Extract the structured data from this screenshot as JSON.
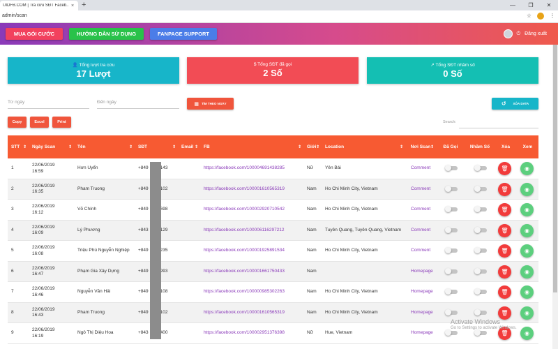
{
  "browser": {
    "tab_title": "UIDFB.COM | Tra cứu SĐT Faceb...",
    "tab_close": "×",
    "new_tab": "+",
    "url": "admin/scan",
    "window_controls": [
      "—",
      "❐",
      "✕"
    ]
  },
  "header": {
    "buttons": [
      "MUA GÓI CƯỚC",
      "HƯỚNG DẪN SỬ DỤNG",
      "FANPAGE SUPPORT"
    ],
    "logout": "Đăng xuất"
  },
  "stats": [
    {
      "title": "Tổng lượt tra cứu",
      "value": "17 Lượt",
      "icon": "user-icon"
    },
    {
      "title": "Tổng SĐT đã gọi",
      "value": "2 Số",
      "icon": "dollar-icon"
    },
    {
      "title": "Tổng SĐT nhầm số",
      "value": "0 Số",
      "icon": "trend-icon"
    }
  ],
  "filters": {
    "from_placeholder": "Từ ngày",
    "to_placeholder": "Đến ngày",
    "filter_button": "TÌM THEO NGÀY",
    "clear_button": "XÓA DATA",
    "export_buttons": [
      "Copy",
      "Excel",
      "Print"
    ],
    "search_label": "Search:"
  },
  "table": {
    "columns": [
      "STT",
      "Ngày Scan",
      "Tên",
      "SĐT",
      "Email",
      "FB",
      "Giới",
      "Location",
      "Nơi Scan",
      "Đã Gọi",
      "Nhầm Số",
      "Xóa",
      "Xem"
    ],
    "rows": [
      {
        "stt": "1",
        "date": "22/06/2019",
        "time": "16:59",
        "name": "Hơn Uyển",
        "sdt_pre": "+849",
        "sdt_post": "143",
        "fb": "https://facebook.com/100004691438285",
        "gender": "Nữ",
        "location": "Yên Bái",
        "source": "Comment"
      },
      {
        "stt": "2",
        "date": "22/06/2019",
        "time": "16:35",
        "name": "Pham Truong",
        "sdt_pre": "+849",
        "sdt_post": "102",
        "fb": "https://facebook.com/100001610565319",
        "gender": "Nam",
        "location": "Ho Chi Minh City, Vietnam",
        "source": "Comment"
      },
      {
        "stt": "3",
        "date": "22/06/2019",
        "time": "16:12",
        "name": "Võ Chính",
        "sdt_pre": "+849",
        "sdt_post": "698",
        "fb": "https://facebook.com/100002920710542",
        "gender": "Nam",
        "location": "Ho Chi Minh City, Vietnam",
        "source": "Comment"
      },
      {
        "stt": "4",
        "date": "22/06/2019",
        "time": "16:09",
        "name": "Lý Phương",
        "sdt_pre": "+843",
        "sdt_post": "129",
        "fb": "https://facebook.com/100006116297212",
        "gender": "Nam",
        "location": "Tuyên Quang, Tuyên Quang, Vietnam",
        "source": "Comment"
      },
      {
        "stt": "5",
        "date": "22/06/2019",
        "time": "16:08",
        "name": "Triệu Phú Nguyễn Nghiệp",
        "sdt_pre": "+849",
        "sdt_post": "235",
        "fb": "https://facebook.com/100001925891534",
        "gender": "Nam",
        "location": "Ho Chi Minh City, Vietnam",
        "source": "Comment"
      },
      {
        "stt": "6",
        "date": "22/06/2019",
        "time": "16:47",
        "name": "Phạm Gia Xây Dựng",
        "sdt_pre": "+849",
        "sdt_post": "993",
        "fb": "https://facebook.com/100001661750433",
        "gender": "Nam",
        "location": "",
        "source": "Homepage"
      },
      {
        "stt": "7",
        "date": "22/06/2019",
        "time": "16:46",
        "name": "Nguyễn Văn Hải",
        "sdt_pre": "+849",
        "sdt_post": "108",
        "fb": "https://facebook.com/100000985302263",
        "gender": "Nam",
        "location": "Ho Chi Minh City, Vietnam",
        "source": "Homepage"
      },
      {
        "stt": "8",
        "date": "22/06/2019",
        "time": "16:43",
        "name": "Pham Truong",
        "sdt_pre": "+849",
        "sdt_post": "102",
        "fb": "https://facebook.com/100001610565319",
        "gender": "Nam",
        "location": "Ho Chi Minh City, Vietnam",
        "source": "Homepage"
      },
      {
        "stt": "9",
        "date": "22/06/2019",
        "time": "16:19",
        "name": "Ngô Thị Diệu Hoa",
        "sdt_pre": "+843",
        "sdt_post": "400",
        "fb": "https://facebook.com/100002951376398",
        "gender": "Nữ",
        "location": "Hue, Vietnam",
        "source": "Homepage"
      }
    ]
  },
  "watermark": {
    "line1": "Activate Windows",
    "line2": "Go to Settings to activate Windows."
  },
  "colors": {
    "header_orange": "#f75a32",
    "link_purple": "#8a3ab9",
    "delete_red": "#f23b3b",
    "view_green": "#5ccf7e"
  }
}
